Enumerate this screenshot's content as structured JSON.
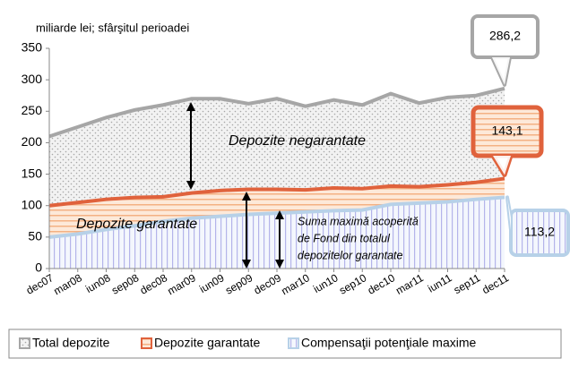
{
  "chart_data": {
    "type": "area",
    "y_label": "miliarde lei; sfârşitul perioadei",
    "categories": [
      "dec07",
      "mar08",
      "iun08",
      "sep08",
      "dec08",
      "mar09",
      "iun09",
      "sep09",
      "dec09",
      "mar10",
      "iun10",
      "sep10",
      "dec10",
      "mar11",
      "iun11",
      "sep11",
      "dec11"
    ],
    "series": [
      {
        "name": "Total depozite",
        "color": "#a6a6a6",
        "values": [
          210,
          225,
          240,
          252,
          260,
          270,
          270,
          262,
          270,
          258,
          268,
          260,
          278,
          263,
          272,
          275,
          286.2
        ],
        "value_labels": [
          null,
          null,
          null,
          null,
          null,
          null,
          null,
          null,
          null,
          null,
          null,
          null,
          null,
          null,
          null,
          null,
          "286,2"
        ]
      },
      {
        "name": "Depozite garantate",
        "color": "#e0623c",
        "values": [
          100,
          105,
          110,
          113,
          114,
          120,
          124,
          126,
          126,
          125,
          128,
          127,
          131,
          130,
          133,
          137,
          143.1
        ],
        "value_labels": [
          null,
          null,
          null,
          null,
          null,
          null,
          null,
          null,
          null,
          null,
          null,
          null,
          null,
          null,
          null,
          null,
          "143,1"
        ]
      },
      {
        "name": "Compensaţii potenţiale maxime",
        "color": "#b7d1e8",
        "values": [
          50,
          55,
          62,
          68,
          75,
          80,
          83,
          86,
          88,
          90,
          92,
          93,
          102,
          104,
          106,
          110,
          113.2
        ],
        "value_labels": [
          null,
          null,
          null,
          null,
          null,
          null,
          null,
          null,
          null,
          null,
          null,
          null,
          null,
          null,
          null,
          null,
          "113,2"
        ]
      }
    ],
    "annotations": [
      "Depozite negarantate",
      "Depozite garantate",
      "Suma maximă acoperită",
      "de Fond din totalul",
      "depozitelor garantate"
    ],
    "ylim": [
      0,
      350
    ],
    "yticks": [
      0,
      50,
      100,
      150,
      200,
      250,
      300,
      350
    ],
    "grid": false,
    "legend": "bottom"
  }
}
